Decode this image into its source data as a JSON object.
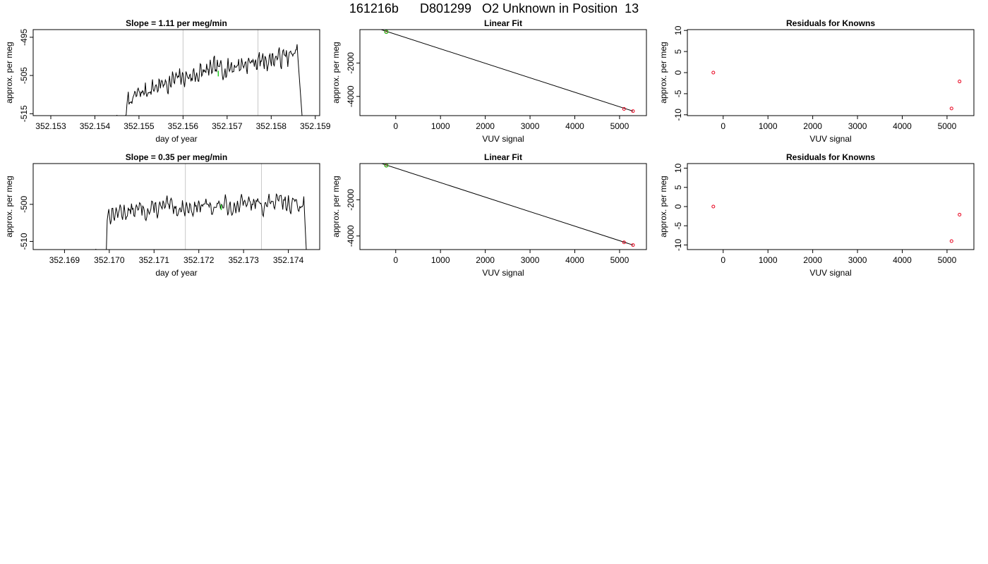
{
  "page_title": "161216b      D801299   O2 Unknown in Position  13",
  "colors": {
    "series_line": "#000000",
    "marker_known": "#e8001c",
    "marker_unknown": "#22cc22",
    "vertical_guides": "#c8c8c8"
  },
  "chart_data": [
    {
      "id": "ts1",
      "type": "line",
      "title": "Slope =  1.11  per meg/min",
      "xlabel": "day of year",
      "ylabel": "approx. per meg",
      "xlim": [
        352.1526,
        352.1591
      ],
      "ylim": [
        -515.5,
        -493.0
      ],
      "xticks": [
        "352.153",
        "352.154",
        "352.155",
        "352.156",
        "352.157",
        "352.158",
        "352.159"
      ],
      "xtick_values": [
        352.153,
        352.154,
        352.155,
        352.156,
        352.157,
        352.158,
        352.159
      ],
      "yticks": [
        "-495",
        "-505",
        "-515"
      ],
      "ytick_values": [
        -495,
        -505,
        -515
      ],
      "vlines": [
        352.156,
        352.1577
      ],
      "x_start": 352.1545,
      "x_end": 352.1587,
      "start_level": -515.5,
      "end_level": -515.5,
      "plateau_start": 352.1547,
      "plateau_end": 352.1586,
      "base_start": -514,
      "base_end": -499.5,
      "amp": 2.2,
      "seed": 7,
      "series": [
        {
          "name": "",
          "rise_x": 352.15445,
          "plateau_from": 352.1548,
          "mean_level": [
            -513,
            -500
          ],
          "fall_x": 352.1587
        }
      ],
      "marker": {
        "x": 352.1568,
        "y": -504.5
      }
    },
    {
      "id": "fit1",
      "type": "scatter",
      "title": "Linear Fit",
      "xlabel": "VUV signal",
      "ylabel": "approx. per meg",
      "xlim": [
        -800,
        5600
      ],
      "ylim": [
        -5150,
        0
      ],
      "xticks": [
        "0",
        "1000",
        "2000",
        "3000",
        "4000",
        "5000"
      ],
      "xtick_values": [
        0,
        1000,
        2000,
        3000,
        4000,
        5000
      ],
      "yticks": [
        "-2000",
        "-4000"
      ],
      "ytick_values": [
        -2000,
        -4000
      ],
      "line": [
        [
          -500,
          150
        ],
        [
          5300,
          -4880
        ]
      ],
      "points_known": [
        [
          -210,
          -130
        ],
        [
          5100,
          -4750
        ],
        [
          5300,
          -4880
        ]
      ],
      "point_unknown": [
        -210,
        -130
      ]
    },
    {
      "id": "res1",
      "type": "scatter",
      "title": "Residuals for Knowns",
      "xlabel": "VUV signal",
      "ylabel": "approx. per meg",
      "xlim": [
        -800,
        5600
      ],
      "ylim": [
        -10.2,
        10.2
      ],
      "xticks": [
        "0",
        "1000",
        "2000",
        "3000",
        "4000",
        "5000"
      ],
      "xtick_values": [
        0,
        1000,
        2000,
        3000,
        4000,
        5000
      ],
      "yticks": [
        "10",
        "5",
        "0",
        "-5",
        "-10"
      ],
      "ytick_values": [
        10,
        5,
        0,
        -5,
        -10
      ],
      "points": [
        [
          -220,
          0
        ],
        [
          5100,
          -8.5
        ],
        [
          5280,
          -2.1
        ]
      ]
    },
    {
      "id": "ts2",
      "type": "line",
      "title": "Slope =  0.35  per meg/min",
      "xlabel": "day of year",
      "ylabel": "approx. per meg",
      "xlim": [
        352.1683,
        352.1747
      ],
      "ylim": [
        -512.2,
        -489.0
      ],
      "xticks": [
        "352.169",
        "352.170",
        "352.171",
        "352.172",
        "352.173",
        "352.174"
      ],
      "xtick_values": [
        352.169,
        352.17,
        352.171,
        352.172,
        352.173,
        352.174
      ],
      "yticks": [
        "-500",
        "-510"
      ],
      "ytick_values": [
        -500,
        -510
      ],
      "vlines": [
        352.1717,
        352.1734
      ],
      "x_start": 352.1697,
      "x_end": 352.1744,
      "start_level": -512.2,
      "end_level": -512.2,
      "plateau_start": 352.16995,
      "plateau_end": 352.17435,
      "base_start": -503,
      "base_end": -499.5,
      "amp": 2.0,
      "seed": 13,
      "series": [
        {
          "name": "",
          "rise_x": 352.1698,
          "plateau_from": 352.17,
          "mean_level": [
            -503,
            -499.5
          ],
          "fall_x": 352.1744
        }
      ],
      "marker": {
        "x": 352.1725,
        "y": -500.8
      }
    },
    {
      "id": "fit2",
      "type": "scatter",
      "title": "Linear Fit",
      "xlabel": "VUV signal",
      "ylabel": "approx. per meg",
      "xlim": [
        -800,
        5600
      ],
      "ylim": [
        -4750,
        0
      ],
      "xticks": [
        "0",
        "1000",
        "2000",
        "3000",
        "4000",
        "5000"
      ],
      "xtick_values": [
        0,
        1000,
        2000,
        3000,
        4000,
        5000
      ],
      "yticks": [
        "-2000",
        "-4000"
      ],
      "ytick_values": [
        -2000,
        -4000
      ],
      "line": [
        [
          -500,
          150
        ],
        [
          5300,
          -4500
        ]
      ],
      "points_known": [
        [
          -210,
          -100
        ],
        [
          5100,
          -4350
        ],
        [
          5300,
          -4500
        ]
      ],
      "point_unknown": [
        -210,
        -100
      ]
    },
    {
      "id": "res2",
      "type": "scatter",
      "title": "Residuals for Knowns",
      "xlabel": "VUV signal",
      "ylabel": "approx. per meg",
      "xlim": [
        -800,
        5600
      ],
      "ylim": [
        -11.2,
        11.2
      ],
      "xticks": [
        "0",
        "1000",
        "2000",
        "3000",
        "4000",
        "5000"
      ],
      "xtick_values": [
        0,
        1000,
        2000,
        3000,
        4000,
        5000
      ],
      "yticks": [
        "10",
        "5",
        "0",
        "-5",
        "-10"
      ],
      "ytick_values": [
        10,
        5,
        0,
        -5,
        -10
      ],
      "points": [
        [
          -220,
          0
        ],
        [
          5100,
          -9.0
        ],
        [
          5280,
          -2.1
        ]
      ]
    }
  ]
}
